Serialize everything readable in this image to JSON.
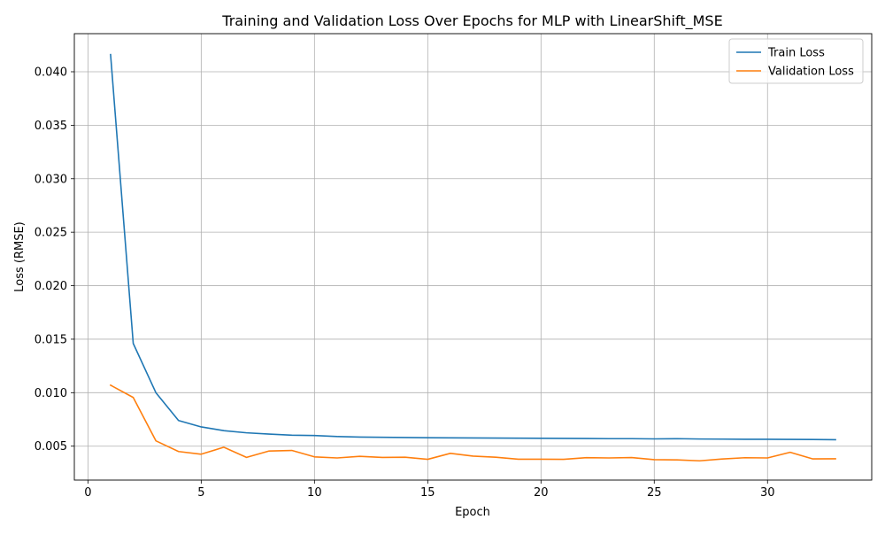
{
  "chart_data": {
    "type": "line",
    "title": "Training and Validation Loss Over Epochs for MLP with LinearShift_MSE",
    "xlabel": "Epoch",
    "ylabel": "Loss (RMSE)",
    "xlim": [
      -0.6,
      34.6
    ],
    "ylim": [
      0.00183,
      0.04356
    ],
    "xticks": [
      0,
      5,
      10,
      15,
      20,
      25,
      30
    ],
    "xtick_labels": [
      "0",
      "5",
      "10",
      "15",
      "20",
      "25",
      "30"
    ],
    "yticks": [
      0.005,
      0.01,
      0.015,
      0.02,
      0.025,
      0.03,
      0.035,
      0.04
    ],
    "ytick_labels": [
      "0.005",
      "0.010",
      "0.015",
      "0.020",
      "0.025",
      "0.030",
      "0.035",
      "0.040"
    ],
    "grid": true,
    "legend_position": "top-right",
    "x": [
      1,
      2,
      3,
      4,
      5,
      6,
      7,
      8,
      9,
      10,
      11,
      12,
      13,
      14,
      15,
      16,
      17,
      18,
      19,
      20,
      21,
      22,
      23,
      24,
      25,
      26,
      27,
      28,
      29,
      30,
      31,
      32,
      33
    ],
    "series": [
      {
        "name": "Train Loss",
        "color": "#1f77b4",
        "values": [
          0.0416,
          0.0146,
          0.01,
          0.0074,
          0.0068,
          0.00645,
          0.00625,
          0.00613,
          0.00603,
          0.006,
          0.0059,
          0.00585,
          0.00583,
          0.00581,
          0.00579,
          0.00578,
          0.00577,
          0.00576,
          0.00575,
          0.00574,
          0.00573,
          0.00572,
          0.0057,
          0.0057,
          0.00568,
          0.0057,
          0.00567,
          0.00566,
          0.00564,
          0.00564,
          0.00563,
          0.00562,
          0.0056
        ]
      },
      {
        "name": "Validation Loss",
        "color": "#ff7f0e",
        "values": [
          0.0107,
          0.00955,
          0.0055,
          0.0045,
          0.00425,
          0.0049,
          0.00395,
          0.00455,
          0.0046,
          0.004,
          0.0039,
          0.00405,
          0.00395,
          0.00397,
          0.00377,
          0.00433,
          0.00407,
          0.00397,
          0.00378,
          0.00378,
          0.00377,
          0.00393,
          0.0039,
          0.00394,
          0.00374,
          0.00372,
          0.00363,
          0.0038,
          0.00392,
          0.0039,
          0.00443,
          0.00381,
          0.00382
        ]
      }
    ]
  }
}
